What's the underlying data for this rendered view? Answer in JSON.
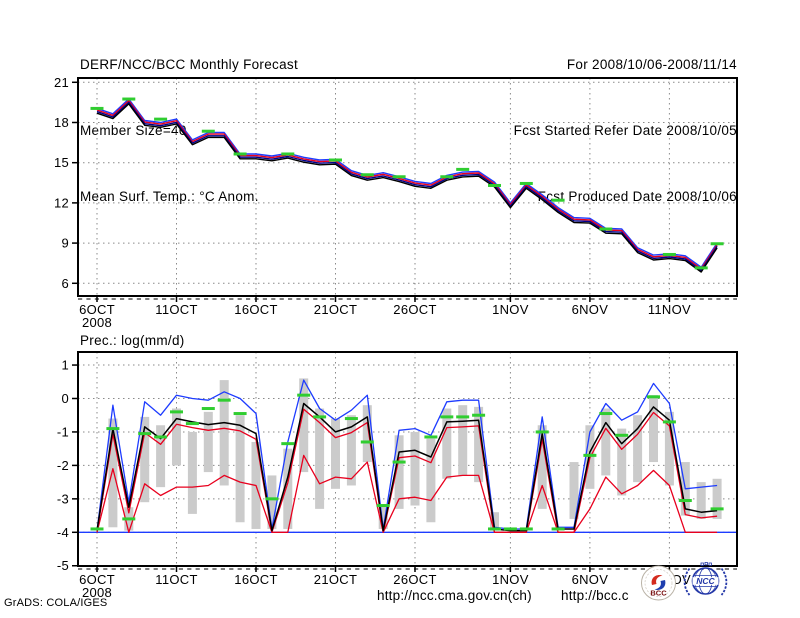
{
  "header": {
    "left": [
      "DERF/NCC/BCC Monthly Forecast",
      "Member Size=40",
      "Mean Surf. Temp.: °C Anom."
    ],
    "right": [
      "For 2008/10/06-2008/11/14",
      "Fcst Started Refer Date 2008/10/05",
      "Fcst Produced Date 2008/10/06"
    ]
  },
  "footer": {
    "credit": "GrADS: COLA/IGES",
    "url_ncc": "http://ncc.cma.gov.cn(ch)",
    "url_bcc": "http://bcc.c",
    "logo_bcc_label": "BCC",
    "logo_ncc_label": "NCC"
  },
  "colors": {
    "blue": "#1e3cff",
    "red": "#e8001e",
    "navy": "#00008b",
    "black": "#000000",
    "obs_green": "#30cd30",
    "spread_bar": "#cbcbcb",
    "grid": "#8a8a8a"
  },
  "chart_data": [
    {
      "type": "line",
      "title": "Mean Surf. Temp.: °C Anom.",
      "x_range": "2008/10/06 - 2008/11/14 (daily, 40 points)",
      "x_ticks": [
        {
          "day": 0,
          "label": "6OCT",
          "sublabel": "2008"
        },
        {
          "day": 5,
          "label": "11OCT"
        },
        {
          "day": 10,
          "label": "16OCT"
        },
        {
          "day": 15,
          "label": "21OCT"
        },
        {
          "day": 20,
          "label": "26OCT"
        },
        {
          "day": 26,
          "label": "1NOV"
        },
        {
          "day": 31,
          "label": "6NOV"
        },
        {
          "day": 36,
          "label": "11NOV"
        }
      ],
      "yticks": [
        21,
        18,
        15,
        12,
        9,
        6
      ],
      "ylim": [
        5.05,
        21.32
      ],
      "grid": "dotted",
      "base_values": [
        18.9,
        18.5,
        19.6,
        18.0,
        17.85,
        18.1,
        16.55,
        17.1,
        17.1,
        15.5,
        15.5,
        15.35,
        15.55,
        15.25,
        15.05,
        15.1,
        14.25,
        13.9,
        14.1,
        13.8,
        13.45,
        13.3,
        13.9,
        14.15,
        14.2,
        13.4,
        11.85,
        13.3,
        12.45,
        11.5,
        10.75,
        10.7,
        9.95,
        9.9,
        8.5,
        7.95,
        8.05,
        7.9,
        7.05,
        8.85
      ],
      "series": [
        {
          "name": "blue-line",
          "color": "#1e3cff",
          "offset": 0.15
        },
        {
          "name": "red-line",
          "color": "#e8001e",
          "offset": 0.03
        },
        {
          "name": "navy-line",
          "color": "#00008b",
          "offset": -0.09
        },
        {
          "name": "black-line",
          "color": "#000000",
          "offset": -0.21
        }
      ],
      "obs": {
        "name": "observation-dashes",
        "color": "#30cd30",
        "points": [
          [
            0,
            19.05
          ],
          [
            2,
            19.75
          ],
          [
            4,
            18.25
          ],
          [
            7,
            17.35
          ],
          [
            9,
            15.65
          ],
          [
            12,
            15.65
          ],
          [
            15,
            15.2
          ],
          [
            17,
            14.1
          ],
          [
            19,
            13.95
          ],
          [
            22,
            13.95
          ],
          [
            23,
            14.5
          ],
          [
            25,
            13.3
          ],
          [
            27,
            13.45
          ],
          [
            29,
            12.2
          ],
          [
            32,
            10.05
          ],
          [
            36,
            8.15
          ],
          [
            38,
            7.15
          ],
          [
            39,
            8.95
          ]
        ]
      }
    },
    {
      "type": "line+bars",
      "title": "Prec.: log(mm/d)",
      "x_range": "2008/10/06 - 2008/11/14 (daily, 40 points)",
      "x_ticks": [
        {
          "day": 0,
          "label": "6OCT",
          "sublabel": "2008"
        },
        {
          "day": 5,
          "label": "11OCT"
        },
        {
          "day": 10,
          "label": "16OCT"
        },
        {
          "day": 15,
          "label": "21OCT"
        },
        {
          "day": 20,
          "label": "26OCT"
        },
        {
          "day": 26,
          "label": "1NOV"
        },
        {
          "day": 31,
          "label": "6NOV"
        },
        {
          "day": 36,
          "label": "11NOV"
        }
      ],
      "yticks": [
        1,
        0,
        -1,
        -2,
        -3,
        -4,
        -5
      ],
      "ylim": [
        -5,
        1.39
      ],
      "grid": "dotted",
      "bars": {
        "name": "ensemble-spread-bars",
        "color": "#cbcbcb",
        "ranges": [
          [
            1,
            -3.85,
            -0.6
          ],
          [
            2,
            -3.95,
            -3.25
          ],
          [
            3,
            -3.1,
            -0.55
          ],
          [
            4,
            -2.65,
            -0.8
          ],
          [
            5,
            -2.0,
            -0.3
          ],
          [
            6,
            -3.45,
            -1.0
          ],
          [
            7,
            -2.2,
            -0.4
          ],
          [
            8,
            -2.6,
            0.55
          ],
          [
            9,
            -3.7,
            -0.5
          ],
          [
            10,
            -3.9,
            -1.3
          ],
          [
            11,
            -3.9,
            -2.3
          ],
          [
            12,
            -3.9,
            -1.5
          ],
          [
            13,
            -2.2,
            0.6
          ],
          [
            14,
            -3.3,
            -0.3
          ],
          [
            15,
            -2.7,
            -0.6
          ],
          [
            16,
            -2.6,
            -0.5
          ],
          [
            17,
            -1.9,
            -0.2
          ],
          [
            18,
            -3.9,
            -3.2
          ],
          [
            19,
            -3.3,
            -1.1
          ],
          [
            20,
            -3.2,
            -1.0
          ],
          [
            21,
            -3.7,
            -1.2
          ],
          [
            22,
            -2.4,
            -0.3
          ],
          [
            23,
            -2.3,
            -0.2
          ],
          [
            24,
            -2.5,
            -0.25
          ],
          [
            25,
            -3.95,
            -3.4
          ],
          [
            28,
            -3.3,
            -0.8
          ],
          [
            30,
            -3.6,
            -1.9
          ],
          [
            31,
            -2.7,
            -0.8
          ],
          [
            32,
            -2.3,
            -0.3
          ],
          [
            33,
            -2.9,
            -0.9
          ],
          [
            34,
            -2.5,
            -0.5
          ],
          [
            35,
            -1.9,
            0.1
          ],
          [
            36,
            -2.6,
            -0.4
          ],
          [
            37,
            -3.5,
            -1.9
          ],
          [
            38,
            -3.6,
            -2.5
          ],
          [
            39,
            -3.6,
            -2.4
          ]
        ]
      },
      "series": [
        {
          "name": "min-floor-blue",
          "color": "#1e3cff",
          "constant": -4
        },
        {
          "name": "max-blue",
          "color": "#1e3cff",
          "values": [
            -3.95,
            -0.2,
            -3.1,
            -0.1,
            -0.5,
            0.1,
            0.0,
            -0.05,
            0.2,
            0.0,
            -0.45,
            -3.9,
            -1.3,
            0.55,
            -0.3,
            -0.65,
            -0.35,
            0.1,
            -3.9,
            -0.95,
            -0.9,
            -1.1,
            -0.1,
            -0.05,
            -0.05,
            -3.85,
            -3.9,
            -3.9,
            -0.55,
            -3.85,
            -3.85,
            -1.0,
            -0.15,
            -0.65,
            -0.4,
            0.45,
            -0.15,
            -2.7,
            -2.65,
            -2.6
          ]
        },
        {
          "name": "lower-red",
          "color": "#e8001e",
          "values": [
            -4,
            -2.1,
            -4,
            -2.55,
            -2.9,
            -2.65,
            -2.65,
            -2.6,
            -2.3,
            -2.5,
            -2.6,
            -4,
            -4,
            -1.7,
            -2.55,
            -2.35,
            -2.4,
            -1.9,
            -4,
            -3.0,
            -2.95,
            -3.05,
            -2.35,
            -2.3,
            -2.3,
            -4,
            -4,
            -4,
            -2.6,
            -4,
            -4,
            -3.3,
            -2.35,
            -2.85,
            -2.6,
            -2.15,
            -2.6,
            -4,
            -4,
            -4
          ]
        },
        {
          "name": "median-red",
          "color": "#e8001e",
          "offset_from": "mean-black",
          "offset": -0.17
        },
        {
          "name": "mean-black",
          "color": "#000000",
          "values": [
            -3.95,
            -0.9,
            -3.25,
            -0.85,
            -1.2,
            -0.6,
            -0.7,
            -0.78,
            -0.72,
            -0.8,
            -1.05,
            -3.95,
            -2.35,
            -0.15,
            -0.55,
            -1.0,
            -0.85,
            -0.55,
            -3.95,
            -1.6,
            -1.55,
            -1.75,
            -0.7,
            -0.68,
            -0.65,
            -3.9,
            -3.95,
            -3.95,
            -1.05,
            -3.9,
            -3.9,
            -1.6,
            -0.72,
            -1.35,
            -0.9,
            -0.25,
            -0.65,
            -3.3,
            -3.4,
            -3.35
          ]
        }
      ],
      "obs": {
        "name": "observation-dashes",
        "color": "#30cd30",
        "points": [
          [
            0,
            -3.9
          ],
          [
            1,
            -0.9
          ],
          [
            2,
            -3.6
          ],
          [
            3,
            -1.05
          ],
          [
            4,
            -1.15
          ],
          [
            5,
            -0.4
          ],
          [
            6,
            -0.75
          ],
          [
            7,
            -0.3
          ],
          [
            8,
            -0.05
          ],
          [
            9,
            -0.45
          ],
          [
            11,
            -3.0
          ],
          [
            12,
            -1.35
          ],
          [
            13,
            0.1
          ],
          [
            14,
            -0.55
          ],
          [
            16,
            -0.6
          ],
          [
            17,
            -1.3
          ],
          [
            18,
            -3.2
          ],
          [
            19,
            -1.9
          ],
          [
            21,
            -1.15
          ],
          [
            22,
            -0.55
          ],
          [
            23,
            -0.55
          ],
          [
            24,
            -0.5
          ],
          [
            25,
            -3.9
          ],
          [
            26,
            -3.9
          ],
          [
            27,
            -3.9
          ],
          [
            28,
            -1.0
          ],
          [
            29,
            -3.9
          ],
          [
            31,
            -1.7
          ],
          [
            32,
            -0.45
          ],
          [
            33,
            -1.1
          ],
          [
            35,
            0.05
          ],
          [
            36,
            -0.7
          ],
          [
            37,
            -3.05
          ],
          [
            39,
            -3.3
          ]
        ]
      }
    }
  ]
}
